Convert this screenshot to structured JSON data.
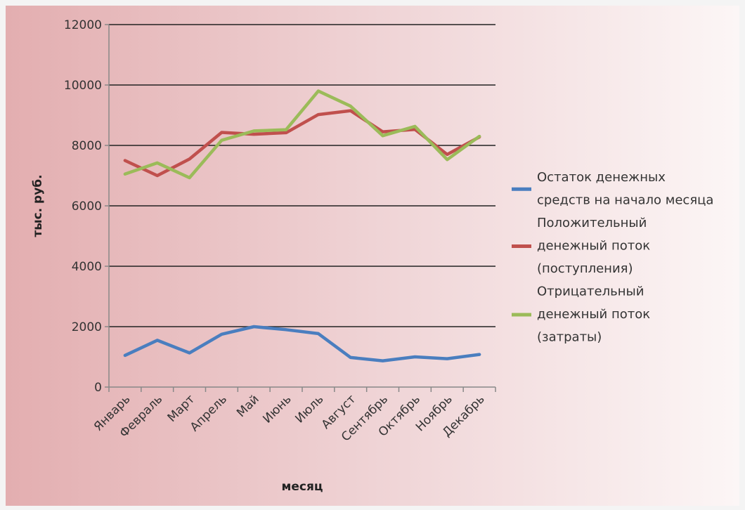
{
  "chart_data": {
    "type": "line",
    "title": "",
    "xlabel": "месяц",
    "ylabel": "тыс. руб.",
    "ylim": [
      0,
      12000
    ],
    "yticks": [
      0,
      2000,
      4000,
      6000,
      8000,
      10000,
      12000
    ],
    "grid": true,
    "legend_position": "right",
    "categories": [
      "Январь",
      "Февраль",
      "Март",
      "Апрель",
      "Май",
      "Июнь",
      "Июль",
      "Август",
      "Сентябрь",
      "Октябрь",
      "Ноябрь",
      "Декабрь"
    ],
    "series": [
      {
        "name": "Остаток денежных средств на начало месяца",
        "legend_lines": [
          "Остаток денежных",
          "средств на начало месяца"
        ],
        "color": "#4a7ebf",
        "values": [
          1050,
          1550,
          1130,
          1750,
          2000,
          1900,
          1770,
          980,
          870,
          1000,
          940,
          1080
        ]
      },
      {
        "name": "Положительный денежный поток (поступления)",
        "legend_lines": [
          "Положительный",
          "денежный поток",
          "(поступления)"
        ],
        "color": "#c0504d",
        "values": [
          7500,
          7000,
          7550,
          8430,
          8370,
          8420,
          9020,
          9150,
          8450,
          8530,
          7700,
          8280
        ]
      },
      {
        "name": "Отрицательный денежный поток (затраты)",
        "legend_lines": [
          "Отрицательный",
          "денежный поток",
          "(затраты)"
        ],
        "color": "#9bbb59",
        "values": [
          7050,
          7420,
          6930,
          8170,
          8480,
          8520,
          9800,
          9300,
          8320,
          8630,
          7530,
          8300
        ]
      }
    ]
  }
}
